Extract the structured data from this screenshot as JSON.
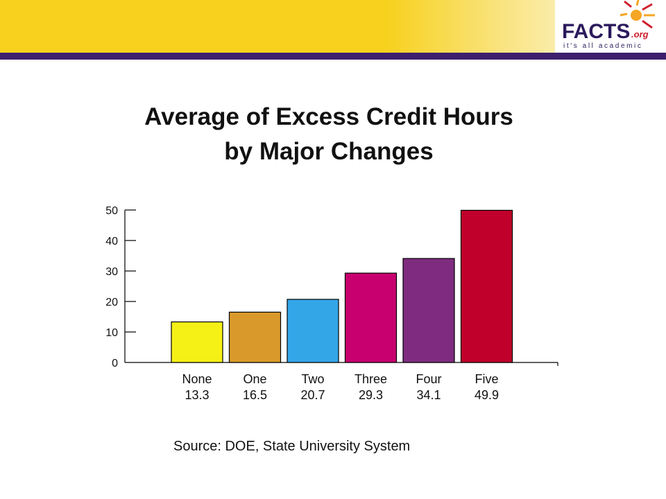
{
  "branding": {
    "logo_text": "FACTS",
    "logo_suffix": ".org",
    "tagline": "it's all academic",
    "colors": {
      "banner": "#f7d11e",
      "rule": "#3d1f6e",
      "logo_text": "#2b1a5c",
      "sun": "#f5a623",
      "rays_red": "#d0202e"
    }
  },
  "slide": {
    "title_line1": "Average of Excess Credit Hours",
    "title_line2": "by Major Changes",
    "source": "Source: DOE, State University System"
  },
  "chart_data": {
    "type": "bar",
    "title": "",
    "xlabel": "",
    "ylabel": "",
    "ylim": [
      0,
      50
    ],
    "yticks": [
      0,
      10,
      20,
      30,
      40,
      50
    ],
    "grid": false,
    "categories": [
      "None",
      "One",
      "Two",
      "Three",
      "Four",
      "Five"
    ],
    "values": [
      13.3,
      16.5,
      20.7,
      29.3,
      34.1,
      49.9
    ],
    "value_labels": [
      "13.3",
      "16.5",
      "20.7",
      "29.3",
      "34.1",
      "49.9"
    ],
    "colors": [
      "#f5f016",
      "#da9a2b",
      "#33a6e8",
      "#c8006f",
      "#7f2c80",
      "#c0002a"
    ]
  }
}
